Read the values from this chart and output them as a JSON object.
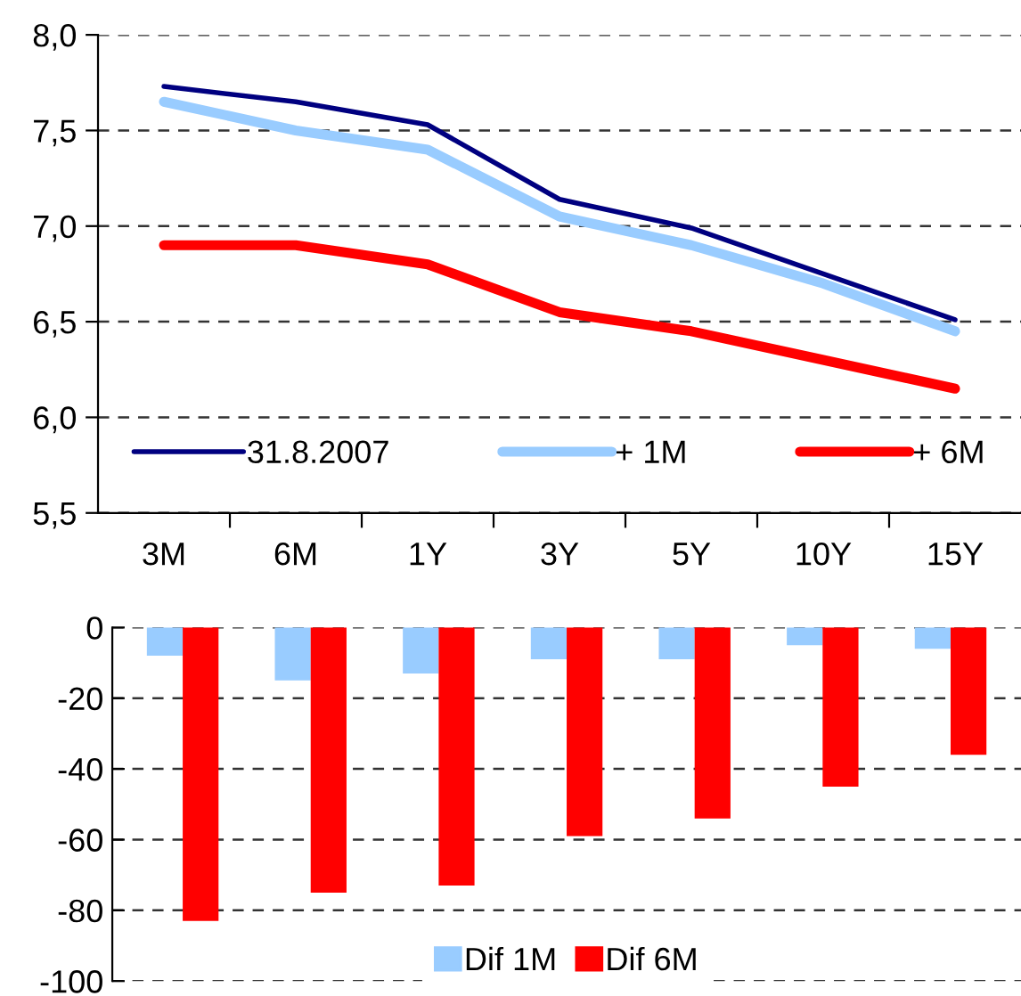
{
  "chart_data": [
    {
      "type": "line",
      "categories": [
        "3M",
        "6M",
        "1Y",
        "3Y",
        "5Y",
        "10Y",
        "15Y"
      ],
      "series": [
        {
          "name": "31.8.2007",
          "color": "#000080",
          "values": [
            7.73,
            7.65,
            7.53,
            7.14,
            6.99,
            6.75,
            6.51
          ]
        },
        {
          "name": "+ 1M",
          "color": "#99ccff",
          "values": [
            7.65,
            7.5,
            7.4,
            7.05,
            6.9,
            6.7,
            6.45
          ]
        },
        {
          "name": "+ 6M",
          "color": "#ff0000",
          "values": [
            6.9,
            6.9,
            6.8,
            6.55,
            6.45,
            6.3,
            6.15
          ]
        }
      ],
      "ylim": [
        5.5,
        8.0
      ],
      "yticks": [
        {
          "value": 5.5,
          "label": "5,5"
        },
        {
          "value": 6.0,
          "label": "6,0"
        },
        {
          "value": 6.5,
          "label": "6,5"
        },
        {
          "value": 7.0,
          "label": "7,0"
        },
        {
          "value": 7.5,
          "label": "7,5"
        },
        {
          "value": 8.0,
          "label": "8,0"
        }
      ],
      "grid": "y",
      "legend": "bottom",
      "marker": "none",
      "line_style": "solid"
    },
    {
      "type": "bar",
      "categories": [
        null,
        null,
        null,
        null,
        null,
        null,
        null
      ],
      "series": [
        {
          "name": "Dif 1M",
          "color": "#99ccff",
          "values": [
            -8,
            -15,
            -13,
            -9,
            -9,
            -5,
            -6
          ]
        },
        {
          "name": "Dif 6M",
          "color": "#ff0000",
          "values": [
            -83,
            -75,
            -73,
            -59,
            -54,
            -45,
            -36
          ]
        }
      ],
      "ylim": [
        -100,
        0
      ],
      "yticks": [
        {
          "value": -100,
          "label": "-100"
        },
        {
          "value": -80,
          "label": "-80"
        },
        {
          "value": -60,
          "label": "-60"
        },
        {
          "value": -40,
          "label": "-40"
        },
        {
          "value": -20,
          "label": "-20"
        },
        0
      ],
      "grid": "y",
      "legend": "bottom"
    }
  ]
}
